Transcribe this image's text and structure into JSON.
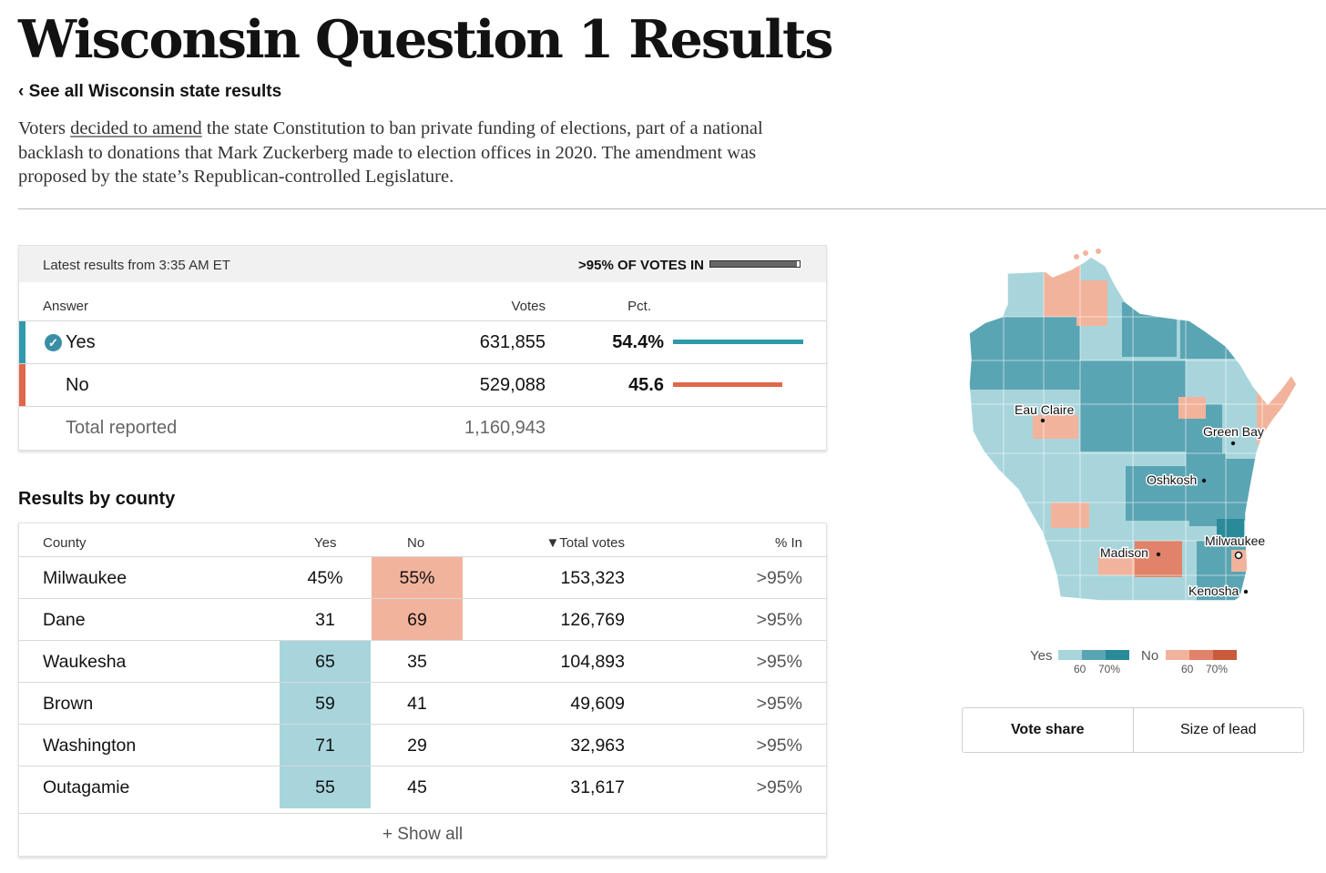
{
  "header": {
    "title": "Wisconsin Question 1 Results",
    "back_link": "‹ See all Wisconsin state results",
    "summary_before": "Voters ",
    "summary_link": "decided to amend",
    "summary_after": " the state Constitution to ban private funding of elections, part of a national backlash to donations that Mark Zuckerberg made to election offices in 2020. The amendment was proposed by the state’s Republican-controlled Legislature."
  },
  "results": {
    "latest": "Latest results from 3:35 AM ET",
    "votes_in_label": ">95% OF VOTES IN",
    "votes_in_fraction": 0.97,
    "col_answer": "Answer",
    "col_votes": "Votes",
    "col_pct": "Pct.",
    "rows": [
      {
        "answer": "Yes",
        "votes": "631,855",
        "pct": "54.4%",
        "pct_value": 54.4,
        "winner": true,
        "color": "#2f9aab"
      },
      {
        "answer": "No",
        "votes": "529,088",
        "pct": "45.6",
        "pct_value": 45.6,
        "winner": false,
        "color": "#e0674b"
      }
    ],
    "total_label": "Total reported",
    "total_votes": "1,160,943",
    "check_icon": "✓"
  },
  "county": {
    "title": "Results by county",
    "headers": {
      "county": "County",
      "yes": "Yes",
      "no": "No",
      "total": "▼Total votes",
      "pct_in": "% In"
    },
    "rows": [
      {
        "county": "Milwaukee",
        "yes": "45%",
        "no": "55%",
        "total": "153,323",
        "pct_in": ">95%",
        "winner": "no"
      },
      {
        "county": "Dane",
        "yes": "31",
        "no": "69",
        "total": "126,769",
        "pct_in": ">95%",
        "winner": "no"
      },
      {
        "county": "Waukesha",
        "yes": "65",
        "no": "35",
        "total": "104,893",
        "pct_in": ">95%",
        "winner": "yes"
      },
      {
        "county": "Brown",
        "yes": "59",
        "no": "41",
        "total": "49,609",
        "pct_in": ">95%",
        "winner": "yes"
      },
      {
        "county": "Washington",
        "yes": "71",
        "no": "29",
        "total": "32,963",
        "pct_in": ">95%",
        "winner": "yes"
      },
      {
        "county": "Outagamie",
        "yes": "55",
        "no": "45",
        "total": "31,617",
        "pct_in": ">95%",
        "winner": "yes"
      }
    ],
    "show_all": "+ Show all"
  },
  "map": {
    "cities": [
      "Eau Claire",
      "Green Bay",
      "Oshkosh",
      "Madison",
      "Milwaukee",
      "Kenosha"
    ],
    "colors": {
      "yes_light": "#a8d5dc",
      "yes_mid": "#5aa5b3",
      "yes_dark": "#2b8a9a",
      "no_light": "#f2b39c",
      "no_mid": "#e0836a",
      "no_dark": "#c95a3c"
    }
  },
  "legend": {
    "yes_label": "Yes",
    "no_label": "No",
    "yes_ticks": [
      "60",
      "70%"
    ],
    "no_ticks": [
      "60",
      "70%"
    ]
  },
  "toggle": {
    "vote_share": "Vote share",
    "size_of_lead": "Size of lead"
  }
}
